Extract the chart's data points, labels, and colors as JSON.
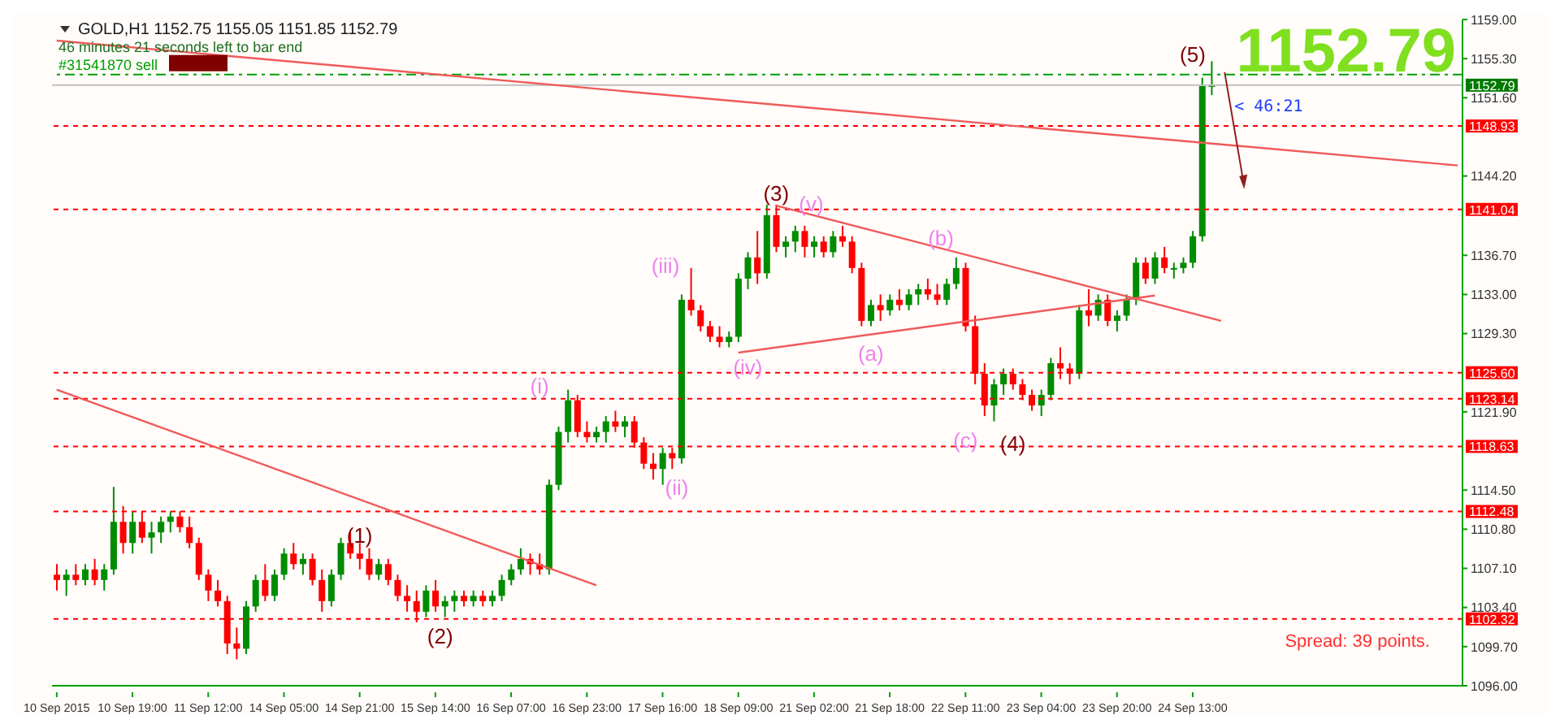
{
  "chart_data": {
    "type": "candlestick",
    "title": "GOLD,H1  1152.75 1155.05 1151.85 1152.79",
    "subtitle": "46 minutes 21 seconds left to bar end",
    "categories": [
      "10 Sep 2015",
      null,
      null,
      null,
      null,
      null,
      null,
      null,
      "10 Sep 19:00",
      null,
      null,
      null,
      null,
      null,
      null,
      null,
      "11 Sep 12:00",
      null,
      null,
      null,
      null,
      null,
      null,
      null,
      "14 Sep 05:00",
      null,
      null,
      null,
      null,
      null,
      null,
      null,
      "14 Sep 21:00",
      null,
      null,
      null,
      null,
      null,
      null,
      null,
      "15 Sep 14:00",
      null,
      null,
      null,
      null,
      null,
      null,
      null,
      "16 Sep 07:00",
      null,
      null,
      null,
      null,
      null,
      null,
      null,
      "16 Sep 23:00",
      null,
      null,
      null,
      null,
      null,
      null,
      null,
      "17 Sep 16:00",
      null,
      null,
      null,
      null,
      null,
      null,
      null,
      "18 Sep 09:00",
      null,
      null,
      null,
      null,
      null,
      null,
      null,
      "21 Sep 02:00",
      null,
      null,
      null,
      null,
      null,
      null,
      null,
      "21 Sep 18:00",
      null,
      null,
      null,
      null,
      null,
      null,
      null,
      "22 Sep 11:00",
      null,
      null,
      null,
      null,
      null,
      null,
      null,
      "23 Sep 04:00",
      null,
      null,
      null,
      null,
      null,
      null,
      null,
      "23 Sep 20:00",
      null,
      null,
      null,
      null,
      null,
      null,
      null,
      "24 Sep 13:00",
      null,
      null,
      null,
      null,
      null,
      null,
      null,
      null,
      null,
      null,
      null,
      null,
      null,
      null,
      null,
      null,
      null,
      null,
      null,
      null,
      null,
      null,
      null,
      null,
      null,
      null,
      null,
      null
    ],
    "ohlc": [
      [
        1106.5,
        1107.5,
        1105,
        1106
      ],
      [
        1106,
        1107,
        1104.5,
        1106.5
      ],
      [
        1106.5,
        1107.5,
        1105.5,
        1106
      ],
      [
        1106,
        1107.5,
        1105.5,
        1107
      ],
      [
        1107,
        1108,
        1105.5,
        1106
      ],
      [
        1106,
        1107.5,
        1105,
        1107
      ],
      [
        1107,
        1114.8,
        1106.5,
        1111.5
      ],
      [
        1111.5,
        1113,
        1108.5,
        1109.5
      ],
      [
        1109.5,
        1112.5,
        1108.5,
        1111.5
      ],
      [
        1111.5,
        1112.5,
        1109.5,
        1110
      ],
      [
        1110,
        1111.5,
        1108.5,
        1110.5
      ],
      [
        1110.5,
        1112,
        1109.5,
        1111.5
      ],
      [
        1111.5,
        1112.5,
        1110.5,
        1112
      ],
      [
        1112,
        1112.5,
        1110.5,
        1111
      ],
      [
        1111,
        1112,
        1109,
        1109.5
      ],
      [
        1109.5,
        1110,
        1106,
        1106.5
      ],
      [
        1106.5,
        1107,
        1104,
        1105
      ],
      [
        1105,
        1106,
        1103.5,
        1104
      ],
      [
        1104,
        1104.5,
        1099,
        1100
      ],
      [
        1100,
        1101.5,
        1098.5,
        1099.5
      ],
      [
        1099.5,
        1104,
        1099,
        1103.5
      ],
      [
        1103.5,
        1106.5,
        1103,
        1106
      ],
      [
        1106,
        1107.5,
        1104,
        1104.5
      ],
      [
        1104.5,
        1107,
        1104,
        1106.5
      ],
      [
        1106.5,
        1109,
        1106,
        1108.5
      ],
      [
        1108.5,
        1109.5,
        1107,
        1107.5
      ],
      [
        1107.5,
        1108.5,
        1106.5,
        1108
      ],
      [
        1108,
        1108.5,
        1105.5,
        1106
      ],
      [
        1106,
        1107,
        1103,
        1104
      ],
      [
        1104,
        1107,
        1103.5,
        1106.5
      ],
      [
        1106.5,
        1110,
        1106,
        1109.5
      ],
      [
        1109.5,
        1110.5,
        1108,
        1108.5
      ],
      [
        1108.5,
        1109.5,
        1107,
        1108
      ],
      [
        1108,
        1109,
        1106,
        1106.5
      ],
      [
        1106.5,
        1108,
        1106,
        1107.5
      ],
      [
        1107.5,
        1108,
        1105.5,
        1106
      ],
      [
        1106,
        1106.5,
        1104,
        1104.5
      ],
      [
        1104.5,
        1105.5,
        1103,
        1104
      ],
      [
        1104,
        1105,
        1102,
        1103
      ],
      [
        1103,
        1105.5,
        1102.5,
        1105
      ],
      [
        1105,
        1106,
        1103,
        1103.5
      ],
      [
        1103.5,
        1104.5,
        1102.5,
        1104
      ],
      [
        1104,
        1105,
        1103,
        1104.5
      ],
      [
        1104.5,
        1105,
        1103.5,
        1104
      ],
      [
        1104,
        1105,
        1103.5,
        1104.5
      ],
      [
        1104.5,
        1105,
        1103.5,
        1104
      ],
      [
        1104,
        1105,
        1103.5,
        1104.5
      ],
      [
        1104.5,
        1106.5,
        1104,
        1106
      ],
      [
        1106,
        1107.5,
        1105.5,
        1107
      ],
      [
        1107,
        1109,
        1106.5,
        1108
      ],
      [
        1108,
        1108.5,
        1106.5,
        1107.5
      ],
      [
        1107.5,
        1108.5,
        1106.5,
        1107
      ],
      [
        1107,
        1115.5,
        1106.5,
        1115
      ],
      [
        1115,
        1120.5,
        1114.5,
        1120
      ],
      [
        1120,
        1124,
        1119,
        1123
      ],
      [
        1123,
        1123.5,
        1119.5,
        1120
      ],
      [
        1120,
        1121,
        1119,
        1119.5
      ],
      [
        1119.5,
        1120.5,
        1119,
        1120
      ],
      [
        1120,
        1121.5,
        1119,
        1121
      ],
      [
        1121,
        1122,
        1120,
        1120.5
      ],
      [
        1120.5,
        1121.5,
        1119.5,
        1121
      ],
      [
        1121,
        1121.5,
        1118.5,
        1119
      ],
      [
        1119,
        1119.5,
        1116.5,
        1117
      ],
      [
        1117,
        1118,
        1115.5,
        1116.5
      ],
      [
        1116.5,
        1118.5,
        1115,
        1118
      ],
      [
        1118,
        1118.5,
        1116.5,
        1117.5
      ],
      [
        1117.5,
        1133,
        1117,
        1132.5
      ],
      [
        1132.5,
        1135.5,
        1131,
        1131.5
      ],
      [
        1131.5,
        1132,
        1129.5,
        1130
      ],
      [
        1130,
        1130.5,
        1128.5,
        1129
      ],
      [
        1129,
        1130,
        1128,
        1128.5
      ],
      [
        1128.5,
        1129.5,
        1128,
        1129
      ],
      [
        1129,
        1135,
        1128.5,
        1134.5
      ],
      [
        1134.5,
        1137,
        1133.5,
        1136.5
      ],
      [
        1136.5,
        1139,
        1134,
        1135
      ],
      [
        1135,
        1141.5,
        1134.5,
        1140.5
      ],
      [
        1140.5,
        1141.5,
        1137,
        1137.5
      ],
      [
        1137.5,
        1138.5,
        1136.5,
        1138
      ],
      [
        1138,
        1139.5,
        1137,
        1139
      ],
      [
        1139,
        1139.5,
        1136.5,
        1137.5
      ],
      [
        1137.5,
        1138.5,
        1136.5,
        1138
      ],
      [
        1138,
        1138.5,
        1136.5,
        1137
      ],
      [
        1137,
        1139,
        1136.5,
        1138.5
      ],
      [
        1138.5,
        1139.5,
        1137.5,
        1138
      ],
      [
        1138,
        1138.5,
        1135,
        1135.5
      ],
      [
        1135.5,
        1136,
        1130,
        1130.5
      ],
      [
        1130.5,
        1132.5,
        1130,
        1132
      ],
      [
        1132,
        1133,
        1130.5,
        1131.5
      ],
      [
        1131.5,
        1133,
        1131,
        1132.5
      ],
      [
        1132.5,
        1133.5,
        1131.5,
        1132
      ],
      [
        1132,
        1133.5,
        1131.5,
        1133
      ],
      [
        1133,
        1134,
        1132,
        1133.5
      ],
      [
        1133.5,
        1134.5,
        1132.5,
        1133
      ],
      [
        1133,
        1134,
        1132,
        1132.5
      ],
      [
        1132.5,
        1134.5,
        1132,
        1134
      ],
      [
        1134,
        1136.5,
        1133.5,
        1135.5
      ],
      [
        1135.5,
        1136,
        1129.5,
        1130
      ],
      [
        1130,
        1131,
        1124.5,
        1125.5
      ],
      [
        1125.5,
        1126.5,
        1121.5,
        1122.5
      ],
      [
        1122.5,
        1125,
        1121,
        1124.5
      ],
      [
        1124.5,
        1126,
        1123.5,
        1125.5
      ],
      [
        1125.5,
        1126,
        1124,
        1124.5
      ],
      [
        1124.5,
        1125,
        1123,
        1123.5
      ],
      [
        1123.5,
        1124,
        1122,
        1122.5
      ],
      [
        1122.5,
        1124,
        1121.5,
        1123.5
      ],
      [
        1123.5,
        1127,
        1123,
        1126.5
      ],
      [
        1126.5,
        1128,
        1125,
        1126
      ],
      [
        1126,
        1126.5,
        1124.5,
        1125.5
      ],
      [
        1125.5,
        1132,
        1125,
        1131.5
      ],
      [
        1131.5,
        1133.5,
        1130,
        1131
      ],
      [
        1131,
        1133,
        1130.5,
        1132.5
      ],
      [
        1132.5,
        1133,
        1130,
        1130.5
      ],
      [
        1130.5,
        1131.5,
        1129.5,
        1131
      ],
      [
        1131,
        1133,
        1130.5,
        1132.5
      ],
      [
        1132.5,
        1136.5,
        1132,
        1136
      ],
      [
        1136,
        1136.5,
        1134,
        1134.5
      ],
      [
        1134.5,
        1137,
        1134,
        1136.5
      ],
      [
        1136.5,
        1137.5,
        1135,
        1135.5
      ],
      [
        1135.5,
        1136,
        1134.5,
        1135.5
      ],
      [
        1135.5,
        1136.5,
        1135,
        1136
      ],
      [
        1136,
        1139,
        1135.5,
        1138.5
      ],
      [
        1138.5,
        1153.5,
        1138,
        1152.7
      ],
      [
        1152.75,
        1155.05,
        1151.85,
        1152.79
      ],
      null,
      null,
      null,
      null,
      null,
      null,
      null,
      null,
      null,
      null,
      null,
      null,
      null,
      null,
      null,
      null,
      null,
      null,
      null,
      null,
      null,
      null,
      null,
      null,
      null,
      null
    ],
    "series": [
      {
        "type": "line",
        "color": "#f05a5a",
        "values": [
          1157.0,
          null,
          null,
          null,
          null,
          null,
          null,
          null,
          null,
          null,
          null,
          null,
          null,
          null,
          null,
          null,
          null,
          null,
          null,
          null,
          null,
          null,
          null,
          null,
          null,
          null,
          null,
          null,
          null,
          null,
          null,
          null,
          null,
          null,
          null,
          null,
          null,
          null,
          null,
          null,
          null,
          null,
          null,
          null,
          null,
          null,
          null,
          null,
          null,
          null,
          null,
          null,
          null,
          null,
          null,
          null,
          null,
          null,
          null,
          null,
          null,
          null,
          null,
          null,
          null,
          null,
          null,
          null,
          null,
          null,
          null,
          null,
          null,
          null,
          null,
          null,
          null,
          null,
          null,
          null,
          null,
          null,
          null,
          null,
          null,
          null,
          null,
          null,
          null,
          null,
          null,
          null,
          null,
          null,
          null,
          null,
          null,
          null,
          null,
          null,
          null,
          null,
          null,
          null,
          null,
          null,
          null,
          null,
          null,
          null,
          null,
          null,
          null,
          null,
          null,
          null,
          null,
          null,
          null,
          null,
          null,
          null,
          null,
          null,
          null,
          null,
          null,
          null,
          null,
          null,
          null,
          null,
          null,
          null,
          null,
          null,
          null,
          null,
          null,
          null,
          null,
          null,
          null,
          null,
          null,
          null,
          null,
          null,
          1145.2
        ]
      },
      {
        "type": "line",
        "color": "#f05a5a",
        "values": [
          1124.0,
          null,
          null,
          null,
          null,
          null,
          null,
          null,
          null,
          null,
          null,
          null,
          null,
          null,
          null,
          null,
          null,
          null,
          null,
          null,
          null,
          null,
          null,
          null,
          null,
          null,
          null,
          null,
          null,
          null,
          null,
          null,
          null,
          null,
          null,
          null,
          null,
          null,
          null,
          null,
          null,
          null,
          null,
          null,
          null,
          null,
          null,
          null,
          null,
          null,
          null,
          null,
          null,
          null,
          null,
          null,
          null,
          1105.5,
          null,
          null,
          null,
          null,
          null,
          null,
          null,
          null,
          null,
          null,
          null,
          null,
          null,
          null,
          null,
          null,
          null,
          null,
          null,
          null,
          null,
          null,
          null,
          null,
          null,
          null,
          null,
          null,
          null,
          null,
          null,
          null,
          null,
          null,
          null,
          null,
          null,
          null,
          null,
          null,
          null,
          null,
          null,
          null,
          null,
          null,
          null,
          null,
          null,
          null,
          null,
          null,
          null,
          null,
          null,
          null,
          null,
          null,
          null,
          null,
          null,
          null,
          null,
          null,
          null,
          null,
          null,
          null,
          null,
          null,
          null,
          null,
          null,
          null,
          null,
          null,
          null,
          null,
          null,
          null,
          null,
          null,
          null,
          null,
          null,
          null,
          null,
          null,
          null,
          null,
          null
        ]
      },
      {
        "type": "line",
        "color": "#f05a5a",
        "values": [
          null,
          null,
          null,
          null,
          null,
          null,
          null,
          null,
          null,
          null,
          null,
          null,
          null,
          null,
          null,
          null,
          null,
          null,
          null,
          null,
          null,
          null,
          null,
          null,
          null,
          null,
          null,
          null,
          null,
          null,
          null,
          null,
          null,
          null,
          null,
          null,
          null,
          null,
          null,
          null,
          null,
          null,
          null,
          null,
          null,
          null,
          null,
          null,
          null,
          null,
          null,
          null,
          null,
          null,
          null,
          null,
          null,
          null,
          null,
          null,
          null,
          null,
          null,
          null,
          null,
          null,
          null,
          null,
          null,
          null,
          null,
          null,
          null,
          null,
          null,
          null,
          1141.4,
          null,
          null,
          null,
          null,
          null,
          null,
          null,
          null,
          null,
          null,
          null,
          null,
          null,
          null,
          null,
          null,
          null,
          null,
          null,
          null,
          null,
          null,
          null,
          null,
          null,
          null,
          null,
          null,
          null,
          null,
          null,
          null,
          null,
          null,
          null,
          null,
          null,
          null,
          null,
          null,
          null,
          null,
          null,
          null,
          null,
          null,
          1130.5,
          null,
          null,
          null,
          null,
          null,
          null,
          null,
          null,
          null,
          null,
          null,
          null,
          null,
          null,
          null,
          null,
          null,
          null,
          null,
          null,
          null,
          null,
          null,
          null,
          null
        ]
      },
      {
        "type": "line",
        "color": "#f05a5a",
        "values": [
          null,
          null,
          null,
          null,
          null,
          null,
          null,
          null,
          null,
          null,
          null,
          null,
          null,
          null,
          null,
          null,
          null,
          null,
          null,
          null,
          null,
          null,
          null,
          null,
          null,
          null,
          null,
          null,
          null,
          null,
          null,
          null,
          null,
          null,
          null,
          null,
          null,
          null,
          null,
          null,
          null,
          null,
          null,
          null,
          null,
          null,
          null,
          null,
          null,
          null,
          null,
          null,
          null,
          null,
          null,
          null,
          null,
          null,
          null,
          null,
          null,
          null,
          null,
          null,
          null,
          null,
          null,
          null,
          null,
          null,
          null,
          null,
          1127.5,
          null,
          null,
          null,
          null,
          null,
          null,
          null,
          null,
          null,
          null,
          null,
          null,
          null,
          null,
          null,
          null,
          null,
          null,
          null,
          null,
          null,
          null,
          null,
          null,
          null,
          null,
          null,
          null,
          null,
          null,
          null,
          null,
          null,
          null,
          null,
          null,
          null,
          null,
          null,
          null,
          null,
          null,
          null,
          1132.9,
          null,
          null,
          null,
          null,
          null,
          null,
          null,
          null,
          null,
          null,
          null,
          null,
          null,
          null,
          null,
          null,
          null,
          null,
          null,
          null,
          null,
          null,
          null,
          null,
          null,
          null,
          null,
          null,
          null,
          null,
          null,
          null
        ]
      }
    ],
    "ylim": [
      1096,
      1159
    ],
    "yticks": [
      {
        "value": 1159,
        "label": "1159.00"
      },
      {
        "value": 1155.3,
        "label": "1155.30"
      },
      {
        "value": 1151.6,
        "label": "1151.60"
      },
      {
        "value": 1144.2,
        "label": "1144.20"
      },
      {
        "value": 1136.7,
        "label": "1136.70"
      },
      {
        "value": 1133,
        "label": "1133.00"
      },
      {
        "value": 1129.3,
        "label": "1129.30"
      },
      {
        "value": 1121.9,
        "label": "1121.90"
      },
      {
        "value": 1114.5,
        "label": "1114.50"
      },
      {
        "value": 1110.8,
        "label": "1110.80"
      },
      {
        "value": 1107.1,
        "label": "1107.10"
      },
      {
        "value": 1103.4,
        "label": "1103.40"
      },
      {
        "value": 1099.7,
        "label": "1099.70"
      },
      {
        "value": 1096,
        "label": "1096.00"
      }
    ],
    "ref_lines": [
      {
        "axis": "y",
        "value": 1153.8,
        "label": "#31541870 sell",
        "color": "#00a000",
        "line_style": "dashed"
      },
      {
        "axis": "y",
        "value": 1152.79,
        "label": "1152.79",
        "color": "#c0c0c0",
        "line_style": "solid"
      },
      {
        "axis": "y",
        "value": 1148.93,
        "label": "1148.93",
        "color": "#ff0000",
        "line_style": "dotted"
      },
      {
        "axis": "y",
        "value": 1141.04,
        "label": "1141.04",
        "color": "#ff0000",
        "line_style": "dotted"
      },
      {
        "axis": "y",
        "value": 1125.6,
        "label": "1125.60",
        "color": "#ff0000",
        "line_style": "dotted"
      },
      {
        "axis": "y",
        "value": 1123.14,
        "label": "1123.14",
        "color": "#ff0000",
        "line_style": "dotted"
      },
      {
        "axis": "y",
        "value": 1118.63,
        "label": "1118.63",
        "color": "#ff0000",
        "line_style": "dotted"
      },
      {
        "axis": "y",
        "value": 1112.48,
        "label": "1112.48",
        "color": "#ff0000",
        "line_style": "dotted"
      },
      {
        "axis": "y",
        "value": 1102.32,
        "label": "1102.32",
        "color": "#ff0000",
        "line_style": "dotted"
      }
    ],
    "annotations": [
      "1152.79",
      "< 46:21",
      "Spread: 39 points.",
      "(1)",
      "(2)",
      "(3)",
      "(4)",
      "(5)",
      "(i)",
      "(ii)",
      "(iii)",
      "(iv)",
      "(v)",
      "(a)",
      "(b)",
      "(c)"
    ],
    "grid": false,
    "legend": false
  }
}
